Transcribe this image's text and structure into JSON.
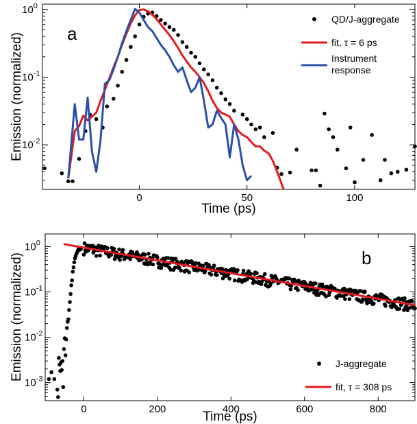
{
  "chart_data": [
    {
      "panel": "a",
      "type": "scatter",
      "xlabel": "Time (ps)",
      "ylabel": "Emission (normalized)",
      "xlim": [
        -45,
        128
      ],
      "ylim": [
        0.0022,
        1.2
      ],
      "yscale": "log",
      "x_ticks": [
        0,
        50,
        100
      ],
      "y_ticks": [
        {
          "value": 0.01,
          "base": "10",
          "exp": "-2"
        },
        {
          "value": 0.1,
          "base": "10",
          "exp": "-1"
        },
        {
          "value": 1,
          "base": "10",
          "exp": "0"
        }
      ],
      "legend_position": "top-right",
      "series": [
        {
          "name": "QD/J-aggregate",
          "style": "markers",
          "color": "#000000",
          "points": [
            [
              -44,
              0.0045
            ],
            [
              -36,
              0.0038
            ],
            [
              -33,
              0.0029
            ],
            [
              -31,
              0.0029
            ],
            [
              -28,
              0.0062
            ],
            [
              -25,
              0.016
            ],
            [
              -23,
              0.028
            ],
            [
              -20,
              0.024
            ],
            [
              -17,
              0.018
            ],
            [
              -15,
              0.037
            ],
            [
              -12,
              0.048
            ],
            [
              -10,
              0.075
            ],
            [
              -8,
              0.12
            ],
            [
              -6,
              0.18
            ],
            [
              -4,
              0.28
            ],
            [
              -2,
              0.4
            ],
            [
              0,
              0.6
            ],
            [
              2,
              0.78
            ],
            [
              4,
              0.87
            ],
            [
              6,
              0.9
            ],
            [
              8,
              0.8
            ],
            [
              10,
              0.7
            ],
            [
              12,
              0.62
            ],
            [
              14,
              0.55
            ],
            [
              16,
              0.5
            ],
            [
              18,
              0.42
            ],
            [
              20,
              0.33
            ],
            [
              22,
              0.28
            ],
            [
              24,
              0.23
            ],
            [
              26,
              0.2
            ],
            [
              28,
              0.16
            ],
            [
              30,
              0.13
            ],
            [
              32,
              0.11
            ],
            [
              34,
              0.09
            ],
            [
              36,
              0.07
            ],
            [
              38,
              0.058
            ],
            [
              40,
              0.047
            ],
            [
              42,
              0.04
            ],
            [
              44,
              0.032
            ],
            [
              48,
              0.028
            ],
            [
              50,
              0.024
            ],
            [
              52,
              0.02
            ],
            [
              54,
              0.017
            ],
            [
              56,
              0.018
            ],
            [
              58,
              0.013
            ],
            [
              62,
              0.015
            ],
            [
              64,
              0.0046
            ],
            [
              66,
              0.0037
            ],
            [
              70,
              0.0039
            ],
            [
              73,
              0.0085
            ],
            [
              80,
              0.0042
            ],
            [
              82,
              0.0042
            ],
            [
              84,
              0.0025
            ],
            [
              86,
              0.029
            ],
            [
              88,
              0.017
            ],
            [
              90,
              0.013
            ],
            [
              92,
              0.0085
            ],
            [
              96,
              0.0045
            ],
            [
              98,
              0.018
            ],
            [
              100,
              0.0028
            ],
            [
              104,
              0.006
            ],
            [
              108,
              0.014
            ],
            [
              112,
              0.003
            ],
            [
              114,
              0.006
            ],
            [
              117,
              0.0038
            ],
            [
              120,
              0.004
            ],
            [
              124,
              0.0043
            ],
            [
              128,
              0.0095
            ]
          ]
        },
        {
          "name": "fit, τ = 6 ps",
          "style": "line",
          "color": "#e31a1c",
          "points": [
            [
              -33,
              0.0032
            ],
            [
              -30,
              0.016
            ],
            [
              -28,
              0.019
            ],
            [
              -26,
              0.027
            ],
            [
              -24,
              0.023
            ],
            [
              -22,
              0.026
            ],
            [
              -20,
              0.03
            ],
            [
              -18,
              0.045
            ],
            [
              -16,
              0.065
            ],
            [
              -14,
              0.095
            ],
            [
              -12,
              0.14
            ],
            [
              -10,
              0.2
            ],
            [
              -8,
              0.3
            ],
            [
              -6,
              0.44
            ],
            [
              -4,
              0.62
            ],
            [
              -2,
              0.82
            ],
            [
              0,
              0.98
            ],
            [
              2,
              1.0
            ],
            [
              4,
              0.94
            ],
            [
              6,
              0.84
            ],
            [
              8,
              0.72
            ],
            [
              10,
              0.6
            ],
            [
              12,
              0.5
            ],
            [
              14,
              0.42
            ],
            [
              16,
              0.34
            ],
            [
              18,
              0.27
            ],
            [
              20,
              0.21
            ],
            [
              22,
              0.17
            ],
            [
              24,
              0.14
            ],
            [
              26,
              0.12
            ],
            [
              28,
              0.1
            ],
            [
              30,
              0.082
            ],
            [
              32,
              0.062
            ],
            [
              34,
              0.045
            ],
            [
              36,
              0.035
            ],
            [
              38,
              0.03
            ],
            [
              40,
              0.028
            ],
            [
              42,
              0.026
            ],
            [
              44,
              0.02
            ],
            [
              46,
              0.016
            ],
            [
              48,
              0.014
            ],
            [
              50,
              0.013
            ],
            [
              52,
              0.011
            ],
            [
              54,
              0.0095
            ],
            [
              56,
              0.0095
            ],
            [
              58,
              0.0082
            ],
            [
              60,
              0.0075
            ],
            [
              62,
              0.0058
            ],
            [
              64,
              0.004
            ],
            [
              67,
              0.0022
            ]
          ]
        },
        {
          "name": "Instrument response",
          "style": "line",
          "color": "#2b4fa8",
          "points": [
            [
              -33,
              0.0032
            ],
            [
              -30,
              0.04
            ],
            [
              -28,
              0.012
            ],
            [
              -26,
              0.012
            ],
            [
              -24,
              0.05
            ],
            [
              -22,
              0.008
            ],
            [
              -20,
              0.004
            ],
            [
              -18,
              0.012
            ],
            [
              -16,
              0.08
            ],
            [
              -14,
              0.09
            ],
            [
              -12,
              0.13
            ],
            [
              -10,
              0.2
            ],
            [
              -8,
              0.32
            ],
            [
              -6,
              0.48
            ],
            [
              -4,
              0.7
            ],
            [
              -2,
              1.02
            ],
            [
              0,
              0.9
            ],
            [
              2,
              0.7
            ],
            [
              4,
              0.55
            ],
            [
              6,
              0.48
            ],
            [
              8,
              0.38
            ],
            [
              10,
              0.3
            ],
            [
              12,
              0.25
            ],
            [
              14,
              0.2
            ],
            [
              16,
              0.15
            ],
            [
              18,
              0.12
            ],
            [
              20,
              0.14
            ],
            [
              22,
              0.09
            ],
            [
              24,
              0.06
            ],
            [
              26,
              0.07
            ],
            [
              28,
              0.1
            ],
            [
              30,
              0.045
            ],
            [
              32,
              0.018
            ],
            [
              34,
              0.02
            ],
            [
              36,
              0.032
            ],
            [
              38,
              0.025
            ],
            [
              40,
              0.02
            ],
            [
              42,
              0.0065
            ],
            [
              44,
              0.02
            ],
            [
              46,
              0.012
            ],
            [
              48,
              0.005
            ],
            [
              50,
              0.003
            ],
            [
              52,
              0.0035
            ]
          ]
        }
      ]
    },
    {
      "panel": "b",
      "type": "scatter",
      "xlabel": "Time (ps)",
      "ylabel": "Emission (normalized)",
      "xlim": [
        -105,
        900
      ],
      "ylim": [
        0.0004,
        1.9
      ],
      "yscale": "log",
      "x_ticks": [
        0,
        200,
        400,
        600,
        800
      ],
      "y_ticks": [
        {
          "value": 0.001,
          "base": "10",
          "exp": "-3"
        },
        {
          "value": 0.01,
          "base": "10",
          "exp": "-2"
        },
        {
          "value": 0.1,
          "base": "10",
          "exp": "-1"
        },
        {
          "value": 1,
          "base": "10",
          "exp": "0"
        }
      ],
      "legend_position": "bottom-right",
      "series": [
        {
          "name": "J-aggregate",
          "style": "markers",
          "color": "#000000",
          "rise_points": [
            [
              -95,
              0.0012
            ],
            [
              -88,
              0.0017
            ],
            [
              -80,
              0.0012
            ],
            [
              -72,
              0.0007
            ],
            [
              -70,
              0.00048
            ],
            [
              -68,
              0.0035
            ],
            [
              -66,
              0.0025
            ],
            [
              -64,
              0.0018
            ],
            [
              -62,
              0.0028
            ],
            [
              -60,
              0.0019
            ],
            [
              -58,
              0.003
            ],
            [
              -56,
              0.0008
            ],
            [
              -54,
              0.0055
            ],
            [
              -52,
              0.0095
            ],
            [
              -50,
              0.004
            ],
            [
              -48,
              0.009
            ],
            [
              -46,
              0.016
            ],
            [
              -44,
              0.022
            ],
            [
              -42,
              0.025
            ],
            [
              -40,
              0.04
            ],
            [
              -38,
              0.06
            ],
            [
              -36,
              0.09
            ],
            [
              -34,
              0.14
            ],
            [
              -32,
              0.18
            ],
            [
              -30,
              0.28
            ],
            [
              -28,
              0.35
            ],
            [
              -26,
              0.45
            ],
            [
              -24,
              0.55
            ],
            [
              -22,
              0.62
            ],
            [
              -20,
              0.7
            ],
            [
              -18,
              0.75
            ],
            [
              -16,
              0.82
            ],
            [
              -14,
              0.9
            ],
            [
              -12,
              0.85
            ],
            [
              -10,
              0.95
            ],
            [
              -8,
              0.88
            ]
          ],
          "decay": {
            "amplitude": 0.95,
            "tau_ps": 308,
            "x_start": 0,
            "x_end": 900,
            "step_ps": 2,
            "scatter_fraction": 0.3
          }
        },
        {
          "name": "fit, τ = 308 ps",
          "style": "line",
          "color": "#e31a1c",
          "function": {
            "amplitude": 0.95,
            "tau_ps": 308,
            "x_start": -55,
            "x_end": 900
          }
        }
      ]
    }
  ]
}
